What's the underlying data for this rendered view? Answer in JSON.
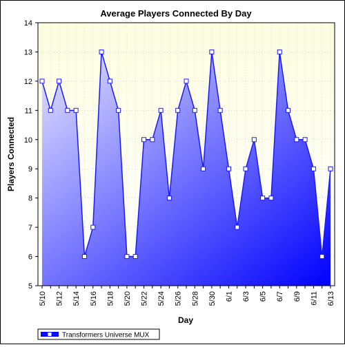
{
  "chart_data": {
    "type": "area",
    "title": "Average Players Connected By Day",
    "xlabel": "Day",
    "ylabel": "Players Connected",
    "ylim": [
      5,
      14
    ],
    "yticks": [
      5,
      6,
      7,
      8,
      9,
      10,
      11,
      12,
      13,
      14
    ],
    "categories": [
      "5/10",
      "5/11",
      "5/12",
      "5/13",
      "5/14",
      "5/15",
      "5/16",
      "5/17",
      "5/18",
      "5/19",
      "5/20",
      "5/21",
      "5/22",
      "5/23",
      "5/24",
      "5/25",
      "5/26",
      "5/27",
      "5/28",
      "5/29",
      "5/30",
      "5/31",
      "6/1",
      "6/2",
      "6/3",
      "6/4",
      "6/5",
      "6/6",
      "6/7",
      "6/8",
      "6/9",
      "6/10",
      "6/11",
      "6/12",
      "6/13"
    ],
    "tick_labels": [
      "5/10",
      "5/12",
      "5/14",
      "5/16",
      "5/18",
      "5/20",
      "5/22",
      "5/24",
      "5/26",
      "5/28",
      "5/30",
      "6/1",
      "6/3",
      "6/5",
      "6/7",
      "6/9",
      "6/11",
      "6/13"
    ],
    "series": [
      {
        "name": "Transformers Universe MUX",
        "values": [
          12,
          11,
          12,
          11,
          11,
          6,
          7,
          13,
          12,
          11,
          6,
          6,
          10,
          10,
          11,
          8,
          11,
          12,
          11,
          9,
          13,
          11,
          9,
          7,
          9,
          10,
          8,
          8,
          13,
          11,
          10,
          10,
          9,
          6,
          9
        ]
      }
    ],
    "grid": true,
    "legend": "bottom-left",
    "colors": {
      "plot_bg_top": "#fdfde0",
      "plot_bg_bottom": "#ffffff",
      "line": "#1a1aff",
      "fill_light": "#e6e6ff",
      "fill_dark": "#0000ff",
      "marker_fill": "#ffffff"
    }
  }
}
